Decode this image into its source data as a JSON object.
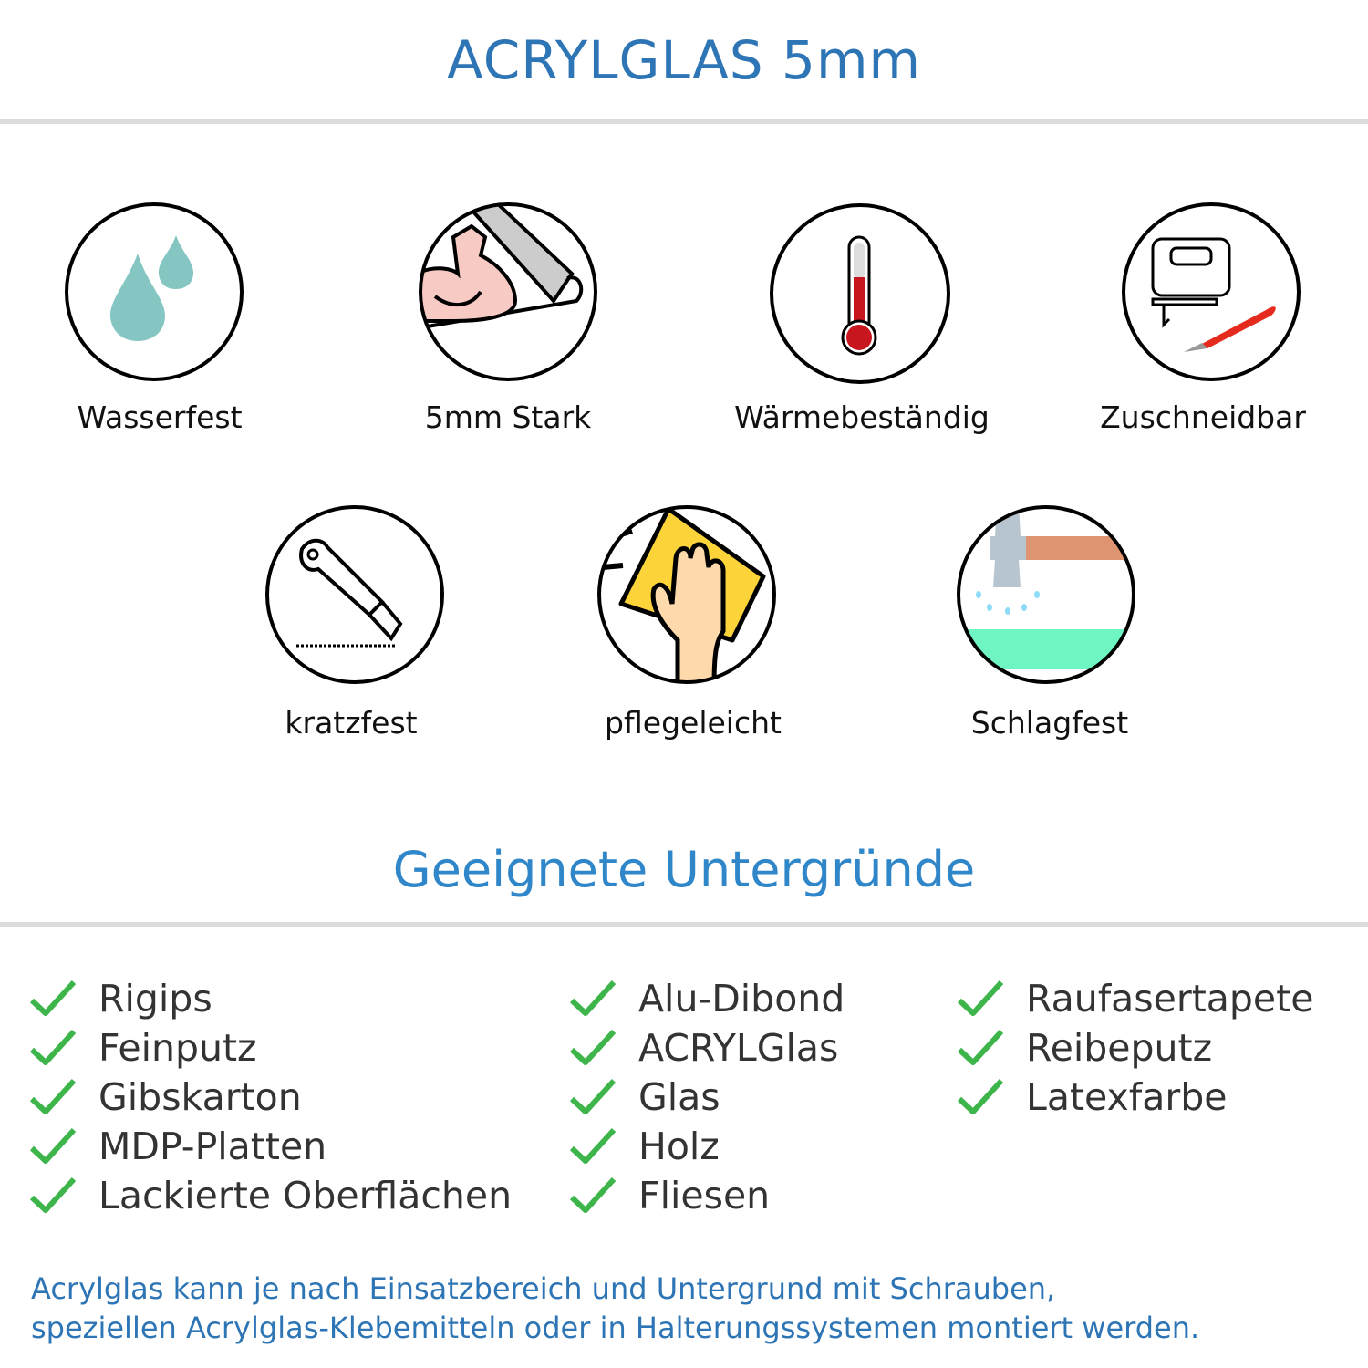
{
  "header": {
    "title": "ACRYLGLAS 5mm"
  },
  "features": [
    {
      "label": "Wasserfest",
      "icon": "water-drops-icon"
    },
    {
      "label": "5mm Stark",
      "icon": "strong-arm-icon"
    },
    {
      "label": "Wärmebeständig",
      "icon": "thermometer-icon"
    },
    {
      "label": "Zuschneidbar",
      "icon": "jigsaw-cutter-icon"
    },
    {
      "label": "kratzfest",
      "icon": "box-cutter-icon"
    },
    {
      "label": "pflegeleicht",
      "icon": "hand-cleaning-cloth-icon"
    },
    {
      "label": "Schlagfest",
      "icon": "hammer-impact-icon"
    }
  ],
  "surfaces": {
    "title": "Geeignete Untergründe",
    "columns": [
      [
        "Rigips",
        "Feinputz",
        "Gibskarton",
        "MDP-Platten",
        "Lackierte Oberflächen"
      ],
      [
        "Alu-Dibond",
        "ACRYLGlas",
        "Glas",
        "Holz",
        "Fliesen"
      ],
      [
        "Raufasertapete",
        "Reibeputz",
        "Latexfarbe"
      ]
    ]
  },
  "footer": {
    "line1": "Acrylglas kann je nach Einsatzbereich und Untergrund mit Schrauben,",
    "line2": "speziellen Acrylglas-Klebemitteln oder in Halterungssystemen montiert werden."
  },
  "colors": {
    "title": "#2e75b6",
    "check": "#3db54a",
    "rule": "#dcdcdc"
  }
}
